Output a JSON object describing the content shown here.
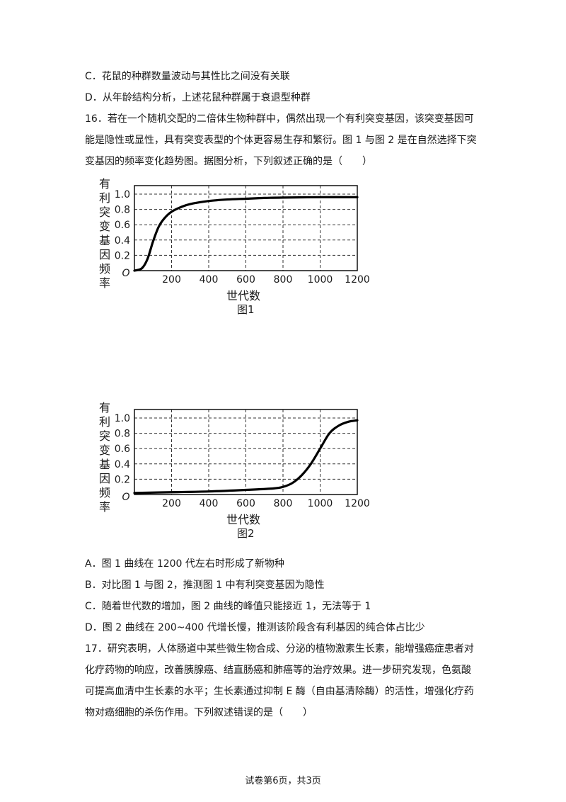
{
  "lines": [
    "C．花鼠的种群数量波动与其性比之间没有关联",
    "D．从年龄结构分析，上述花鼠种群属于衰退型种群",
    "16．若在一个随机交配的二倍体生物种群中，偶然出现一个有利突变基因，该突变基因可",
    "能是隐性或显性，具有突变表型的个体更容易生存和繁衍。图 1 与图 2 是在自然选择下突",
    "变基因的频率变化趋势图。据图分析，下列叙述正确的是（　　）"
  ],
  "options_q16": [
    "A．图 1 曲线在 1200 代左右时形成了新物种",
    "B．对比图 1 与图 2，推测图 1 中有利突变基因为隐性",
    "C．随着世代数的增加，图 2 曲线的峰值只能接近 1，无法等于 1",
    "D．图 2 曲线在 200~400 代增长慢，推测该阶段含有利基因的纯合体占比少"
  ],
  "q17_lines": [
    "17．研究表明，人体肠道中某些微生物合成、分泌的植物激素生长素，能增强癌症患者对",
    "化疗药物的响应，改善胰腺癌、结直肠癌和肺癌等的治疗效果。进一步研究发现，色氨酸",
    "可提高血清中生长素的水平；生长素通过抑制 E 酶（自由基清除酶）的活性，增强化疗药",
    "物对癌细胞的杀伤作用。下列叙述错误的是（　　）"
  ],
  "footer": "试卷第6页，共3页",
  "chart_data": [
    {
      "type": "line",
      "title": "图1",
      "xlabel": "世代数",
      "ylabel": "有利突变基因频率",
      "origin_label": "O",
      "x_ticks": [
        "200",
        "400",
        "600",
        "800",
        "1000",
        "1200"
      ],
      "y_ticks": [
        "0.2",
        "0.4",
        "0.6",
        "0.8",
        "1.0"
      ],
      "xlim": [
        0,
        1200
      ],
      "ylim": [
        0,
        1.0
      ],
      "grid": true,
      "x": [
        0,
        40,
        70,
        100,
        130,
        160,
        200,
        250,
        300,
        400,
        500,
        600,
        700,
        800,
        1000,
        1200
      ],
      "y": [
        0,
        0.03,
        0.15,
        0.38,
        0.57,
        0.68,
        0.77,
        0.83,
        0.87,
        0.91,
        0.93,
        0.94,
        0.95,
        0.955,
        0.96,
        0.96
      ]
    },
    {
      "type": "line",
      "title": "图2",
      "xlabel": "世代数",
      "ylabel": "有利突变基因频率",
      "origin_label": "O",
      "x_ticks": [
        "200",
        "400",
        "600",
        "800",
        "1000",
        "1200"
      ],
      "y_ticks": [
        "0.2",
        "0.4",
        "0.6",
        "0.8",
        "1.0"
      ],
      "xlim": [
        0,
        1200
      ],
      "ylim": [
        0,
        1.0
      ],
      "grid": true,
      "x": [
        0,
        200,
        400,
        600,
        750,
        800,
        850,
        900,
        950,
        1000,
        1050,
        1100,
        1150,
        1200
      ],
      "y": [
        0.02,
        0.03,
        0.04,
        0.06,
        0.08,
        0.1,
        0.15,
        0.25,
        0.4,
        0.6,
        0.8,
        0.9,
        0.95,
        0.97
      ]
    }
  ]
}
